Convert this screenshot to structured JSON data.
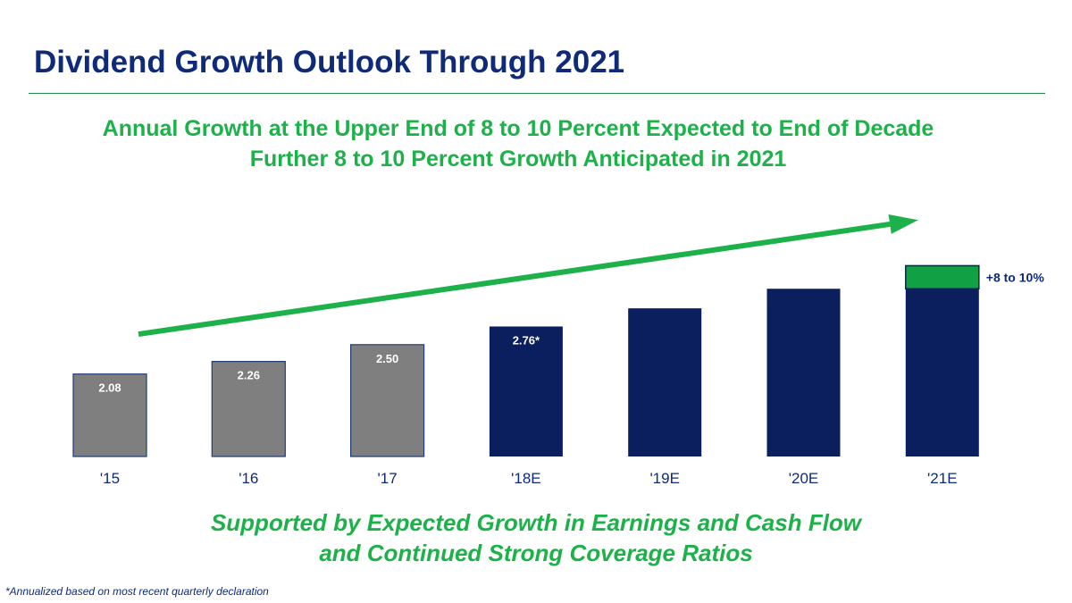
{
  "title": "Dividend Growth Outlook Through 2021",
  "headline": {
    "line1": "Annual Growth at the Upper End of 8 to 10 Percent Expected to End of Decade",
    "line2": "Further 8 to 10 Percent Growth Anticipated in 2021"
  },
  "colors": {
    "title": "#0e2a78",
    "accent_green": "#1db149",
    "actual_bar": "#7f7f7f",
    "estimate_bar": "#0b1f5e",
    "growth_segment": "#11a043",
    "rule": "#1f8a46"
  },
  "chart_data": {
    "type": "bar",
    "title": "",
    "xlabel": "",
    "ylabel": "",
    "categories": [
      "'15",
      "'16",
      "'17",
      "'18E",
      "'19E",
      "'20E",
      "'21E"
    ],
    "values": [
      2.08,
      2.26,
      2.5,
      2.76,
      3.02,
      3.3,
      3.63
    ],
    "data_labels": [
      "2.08",
      "2.26",
      "2.50",
      "2.76*",
      "",
      "",
      ""
    ],
    "kinds": [
      "actual",
      "actual",
      "actual",
      "estimate",
      "estimate",
      "estimate",
      "estimate"
    ],
    "growth_segment": {
      "category": "'21E",
      "value": 0.33,
      "label": "+8 to 10%"
    },
    "trend_arrow": {
      "from": 2.65,
      "to": 4.25
    },
    "ylim": [
      0.9,
      4.3
    ],
    "grid": false,
    "legend": "none"
  },
  "footer": {
    "line1": "Supported by Expected Growth in Earnings and Cash Flow",
    "line2": "and Continued Strong Coverage Ratios"
  },
  "footnote": "*Annualized based on most recent quarterly declaration"
}
